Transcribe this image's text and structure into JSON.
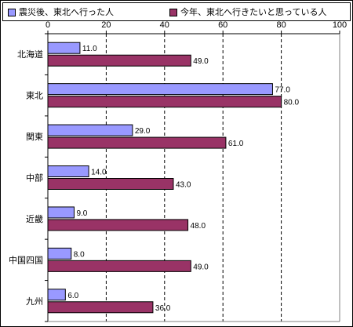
{
  "chart_data": {
    "type": "bar",
    "orientation": "horizontal",
    "categories": [
      "北海道",
      "東北",
      "関東",
      "中部",
      "近畿",
      "中国四国",
      "九州"
    ],
    "series": [
      {
        "name": "震災後、東北へ行った人",
        "values": [
          11.0,
          77.0,
          29.0,
          14.0,
          9.0,
          8.0,
          6.0
        ],
        "color": "#9999ff"
      },
      {
        "name": "今年、東北へ行きたいと思っている人",
        "values": [
          49.0,
          80.0,
          61.0,
          43.0,
          48.0,
          49.0,
          36.0
        ],
        "color": "#993366"
      }
    ],
    "data_labels": [
      [
        "11.0",
        "77.0",
        "29.0",
        "14.0",
        "9.0",
        "8.0",
        "6.0"
      ],
      [
        "49.0",
        "80.0",
        "61.0",
        "43.0",
        "48.0",
        "49.0",
        "36.0"
      ]
    ],
    "xlim": [
      0,
      100
    ],
    "xticks": [
      "0",
      "20",
      "40",
      "60",
      "80",
      "100"
    ],
    "xaxis_position": "top",
    "grid": "vertical dashed",
    "legend_position": "top"
  }
}
